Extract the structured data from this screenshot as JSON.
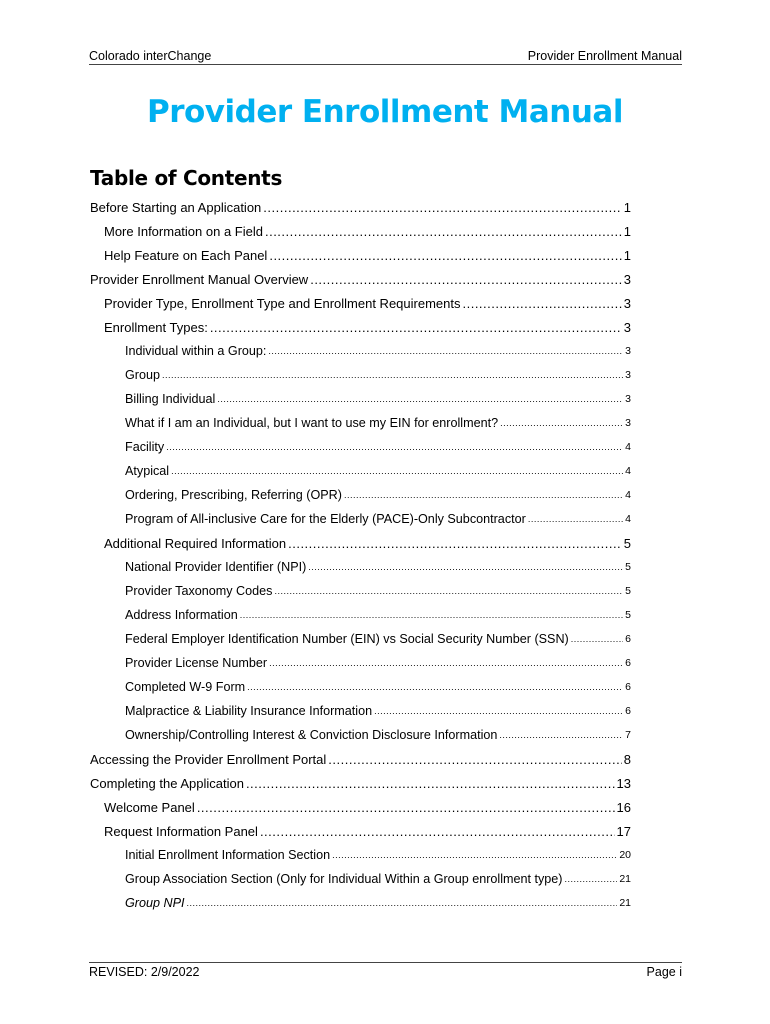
{
  "header": {
    "left": "Colorado interChange",
    "right": "Provider Enrollment Manual"
  },
  "title": "Provider Enrollment Manual",
  "toc_heading": "Table of Contents",
  "toc": [
    {
      "level": 1,
      "text": "Before Starting an Application",
      "page": "1"
    },
    {
      "level": 2,
      "text": "More Information on a Field",
      "page": "1"
    },
    {
      "level": 2,
      "text": "Help Feature on Each Panel",
      "page": "1"
    },
    {
      "level": 1,
      "text": "Provider Enrollment Manual Overview",
      "page": "3"
    },
    {
      "level": 2,
      "text": "Provider Type, Enrollment Type and Enrollment Requirements",
      "page": "3"
    },
    {
      "level": 2,
      "text": "Enrollment Types:",
      "page": "3"
    },
    {
      "level": 3,
      "text": "Individual within a Group:",
      "page": "3"
    },
    {
      "level": 3,
      "text": "Group",
      "page": "3"
    },
    {
      "level": 3,
      "text": "Billing Individual",
      "page": "3"
    },
    {
      "level": 3,
      "text": "What if I am an Individual, but I want to use my EIN for enrollment?",
      "page": "3"
    },
    {
      "level": 3,
      "text": "Facility",
      "page": "4"
    },
    {
      "level": 3,
      "text": "Atypical",
      "page": "4"
    },
    {
      "level": 3,
      "text": "Ordering, Prescribing, Referring (OPR)",
      "page": "4"
    },
    {
      "level": 3,
      "text": "Program of All-inclusive Care for the Elderly (PACE)-Only Subcontractor",
      "page": "4"
    },
    {
      "level": 2,
      "text": "Additional Required Information",
      "page": "5"
    },
    {
      "level": 3,
      "text": "National Provider Identifier (NPI)",
      "page": "5"
    },
    {
      "level": 3,
      "text": "Provider Taxonomy Codes",
      "page": "5"
    },
    {
      "level": 3,
      "text": "Address Information",
      "page": "5"
    },
    {
      "level": 3,
      "text": "Federal Employer Identification Number (EIN) vs Social Security Number (SSN)",
      "page": "6"
    },
    {
      "level": 3,
      "text": "Provider License Number",
      "page": "6"
    },
    {
      "level": 3,
      "text": "Completed W-9 Form",
      "page": "6"
    },
    {
      "level": 3,
      "text": "Malpractice & Liability Insurance Information",
      "page": "6"
    },
    {
      "level": 3,
      "text": "Ownership/Controlling Interest & Conviction Disclosure Information",
      "page": "7"
    },
    {
      "level": 1,
      "text": "Accessing the Provider Enrollment Portal",
      "page": "8"
    },
    {
      "level": 1,
      "text": "Completing the Application",
      "page": "13"
    },
    {
      "level": 2,
      "text": "Welcome Panel",
      "page": "16"
    },
    {
      "level": 2,
      "text": "Request Information Panel",
      "page": "17"
    },
    {
      "level": 3,
      "text": "Initial Enrollment Information Section",
      "page": "20"
    },
    {
      "level": 3,
      "text": "Group Association Section (Only for Individual Within a Group enrollment type)",
      "page": "21"
    },
    {
      "level": 3,
      "text": "Group NPI",
      "page": "21",
      "italic": true
    }
  ],
  "footer": {
    "left": "REVISED: 2/9/2022",
    "right": "Page i"
  },
  "colors": {
    "title": "#00b0f0"
  }
}
